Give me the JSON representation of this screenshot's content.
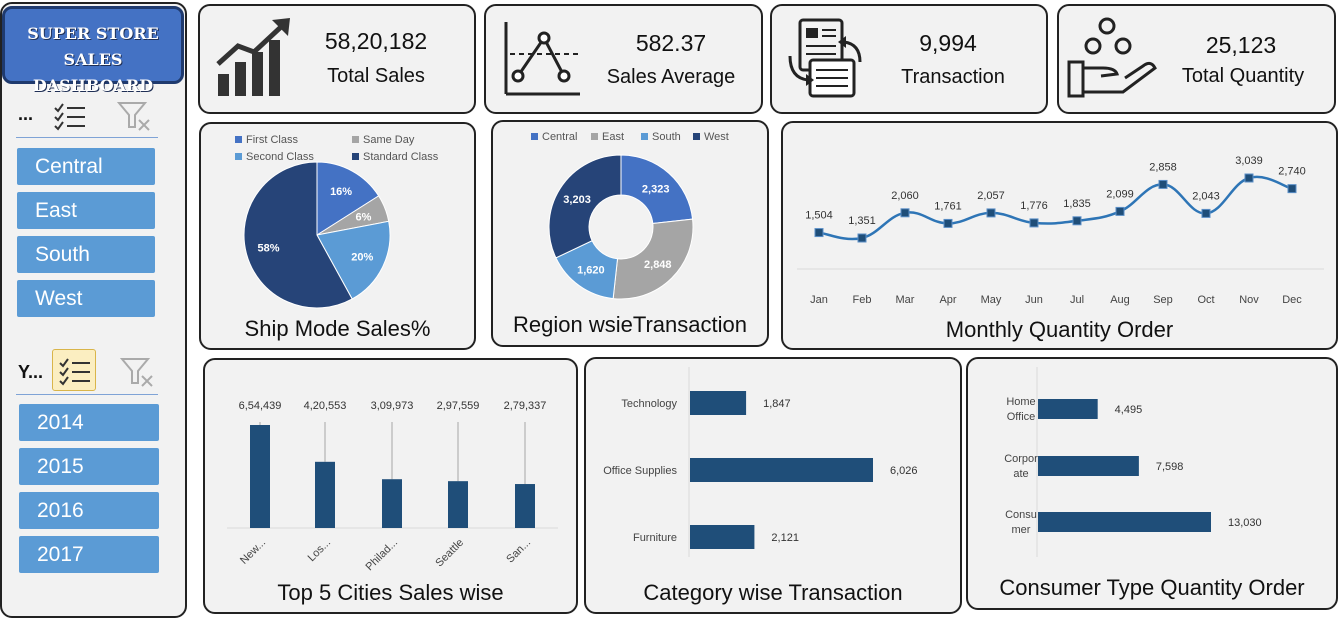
{
  "title": {
    "line1": "SUPER STORE",
    "line2": "SALES DASHBOARD"
  },
  "slicers": {
    "region": {
      "header": "...",
      "items": [
        "Central",
        "East",
        "South",
        "West"
      ]
    },
    "year": {
      "header": "Y...",
      "items": [
        "2014",
        "2015",
        "2016",
        "2017"
      ]
    }
  },
  "kpis": {
    "total_sales": {
      "value": "58,20,182",
      "label": "Total Sales"
    },
    "sales_average": {
      "value": "582.37",
      "label": "Sales Average"
    },
    "transaction": {
      "value": "9,994",
      "label": "Transaction"
    },
    "total_quantity": {
      "value": "25,123",
      "label": "Total Quantity"
    }
  },
  "chart_data": [
    {
      "id": "ship_mode",
      "type": "pie",
      "title": "Ship Mode Sales%",
      "legend_position": "top",
      "slices": [
        {
          "name": "First Class",
          "value": 16,
          "label": "16%",
          "color": "#4472c4"
        },
        {
          "name": "Same Day",
          "value": 6,
          "label": "6%",
          "color": "#a5a5a5"
        },
        {
          "name": "Second Class",
          "value": 20,
          "label": "20%",
          "color": "#5b9bd5"
        },
        {
          "name": "Standard Class",
          "value": 58,
          "label": "58%",
          "color": "#264478"
        }
      ]
    },
    {
      "id": "region",
      "type": "donut",
      "title": "Region wsieTransaction",
      "legend_position": "top",
      "slices": [
        {
          "name": "Central",
          "value": 2323,
          "label": "2,323",
          "color": "#4472c4"
        },
        {
          "name": "East",
          "value": 2848,
          "label": "2,848",
          "color": "#a5a5a5"
        },
        {
          "name": "South",
          "value": 1620,
          "label": "1,620",
          "color": "#5b9bd5"
        },
        {
          "name": "West",
          "value": 3203,
          "label": "3,203",
          "color": "#264478"
        }
      ]
    },
    {
      "id": "monthly",
      "type": "line",
      "title": "Monthly Quantity Order",
      "categories": [
        "Jan",
        "Feb",
        "Mar",
        "Apr",
        "May",
        "Jun",
        "Jul",
        "Aug",
        "Sep",
        "Oct",
        "Nov",
        "Dec"
      ],
      "values": [
        1504,
        1351,
        2060,
        1761,
        2057,
        1776,
        1835,
        2099,
        2858,
        2043,
        3039,
        2740
      ],
      "labels": [
        "1,504",
        "1,351",
        "2,060",
        "1,761",
        "2,057",
        "1,776",
        "1,835",
        "2,099",
        "2,858",
        "2,043",
        "3,039",
        "2,740"
      ],
      "color": "#2e75b6",
      "marker_color": "#1f4e79"
    },
    {
      "id": "cities",
      "type": "bar",
      "title": "Top 5 Cities Sales wise",
      "categories": [
        "New...",
        "Los...",
        "Philad...",
        "Seattle",
        "San..."
      ],
      "values": [
        654439,
        420553,
        309973,
        297559,
        279337
      ],
      "labels": [
        "6,54,439",
        "4,20,553",
        "3,09,973",
        "2,97,559",
        "2,79,337"
      ],
      "color": "#1f4e79"
    },
    {
      "id": "category",
      "type": "bar",
      "orientation": "horizontal",
      "title": "Category wise Transaction",
      "categories": [
        "Technology",
        "Office Supplies",
        "Furniture"
      ],
      "values": [
        1847,
        6026,
        2121
      ],
      "labels": [
        "1,847",
        "6,026",
        "2,121"
      ],
      "color": "#1f4e79"
    },
    {
      "id": "consumer",
      "type": "bar",
      "orientation": "horizontal",
      "title": "Consumer Type Quantity Order",
      "categories": [
        [
          "Home",
          "Office"
        ],
        [
          "Corpor",
          "ate"
        ],
        [
          "Consu",
          "mer"
        ]
      ],
      "values": [
        4495,
        7598,
        13030
      ],
      "labels": [
        "4,495",
        "7,598",
        "13,030"
      ],
      "color": "#1f4e79"
    }
  ]
}
